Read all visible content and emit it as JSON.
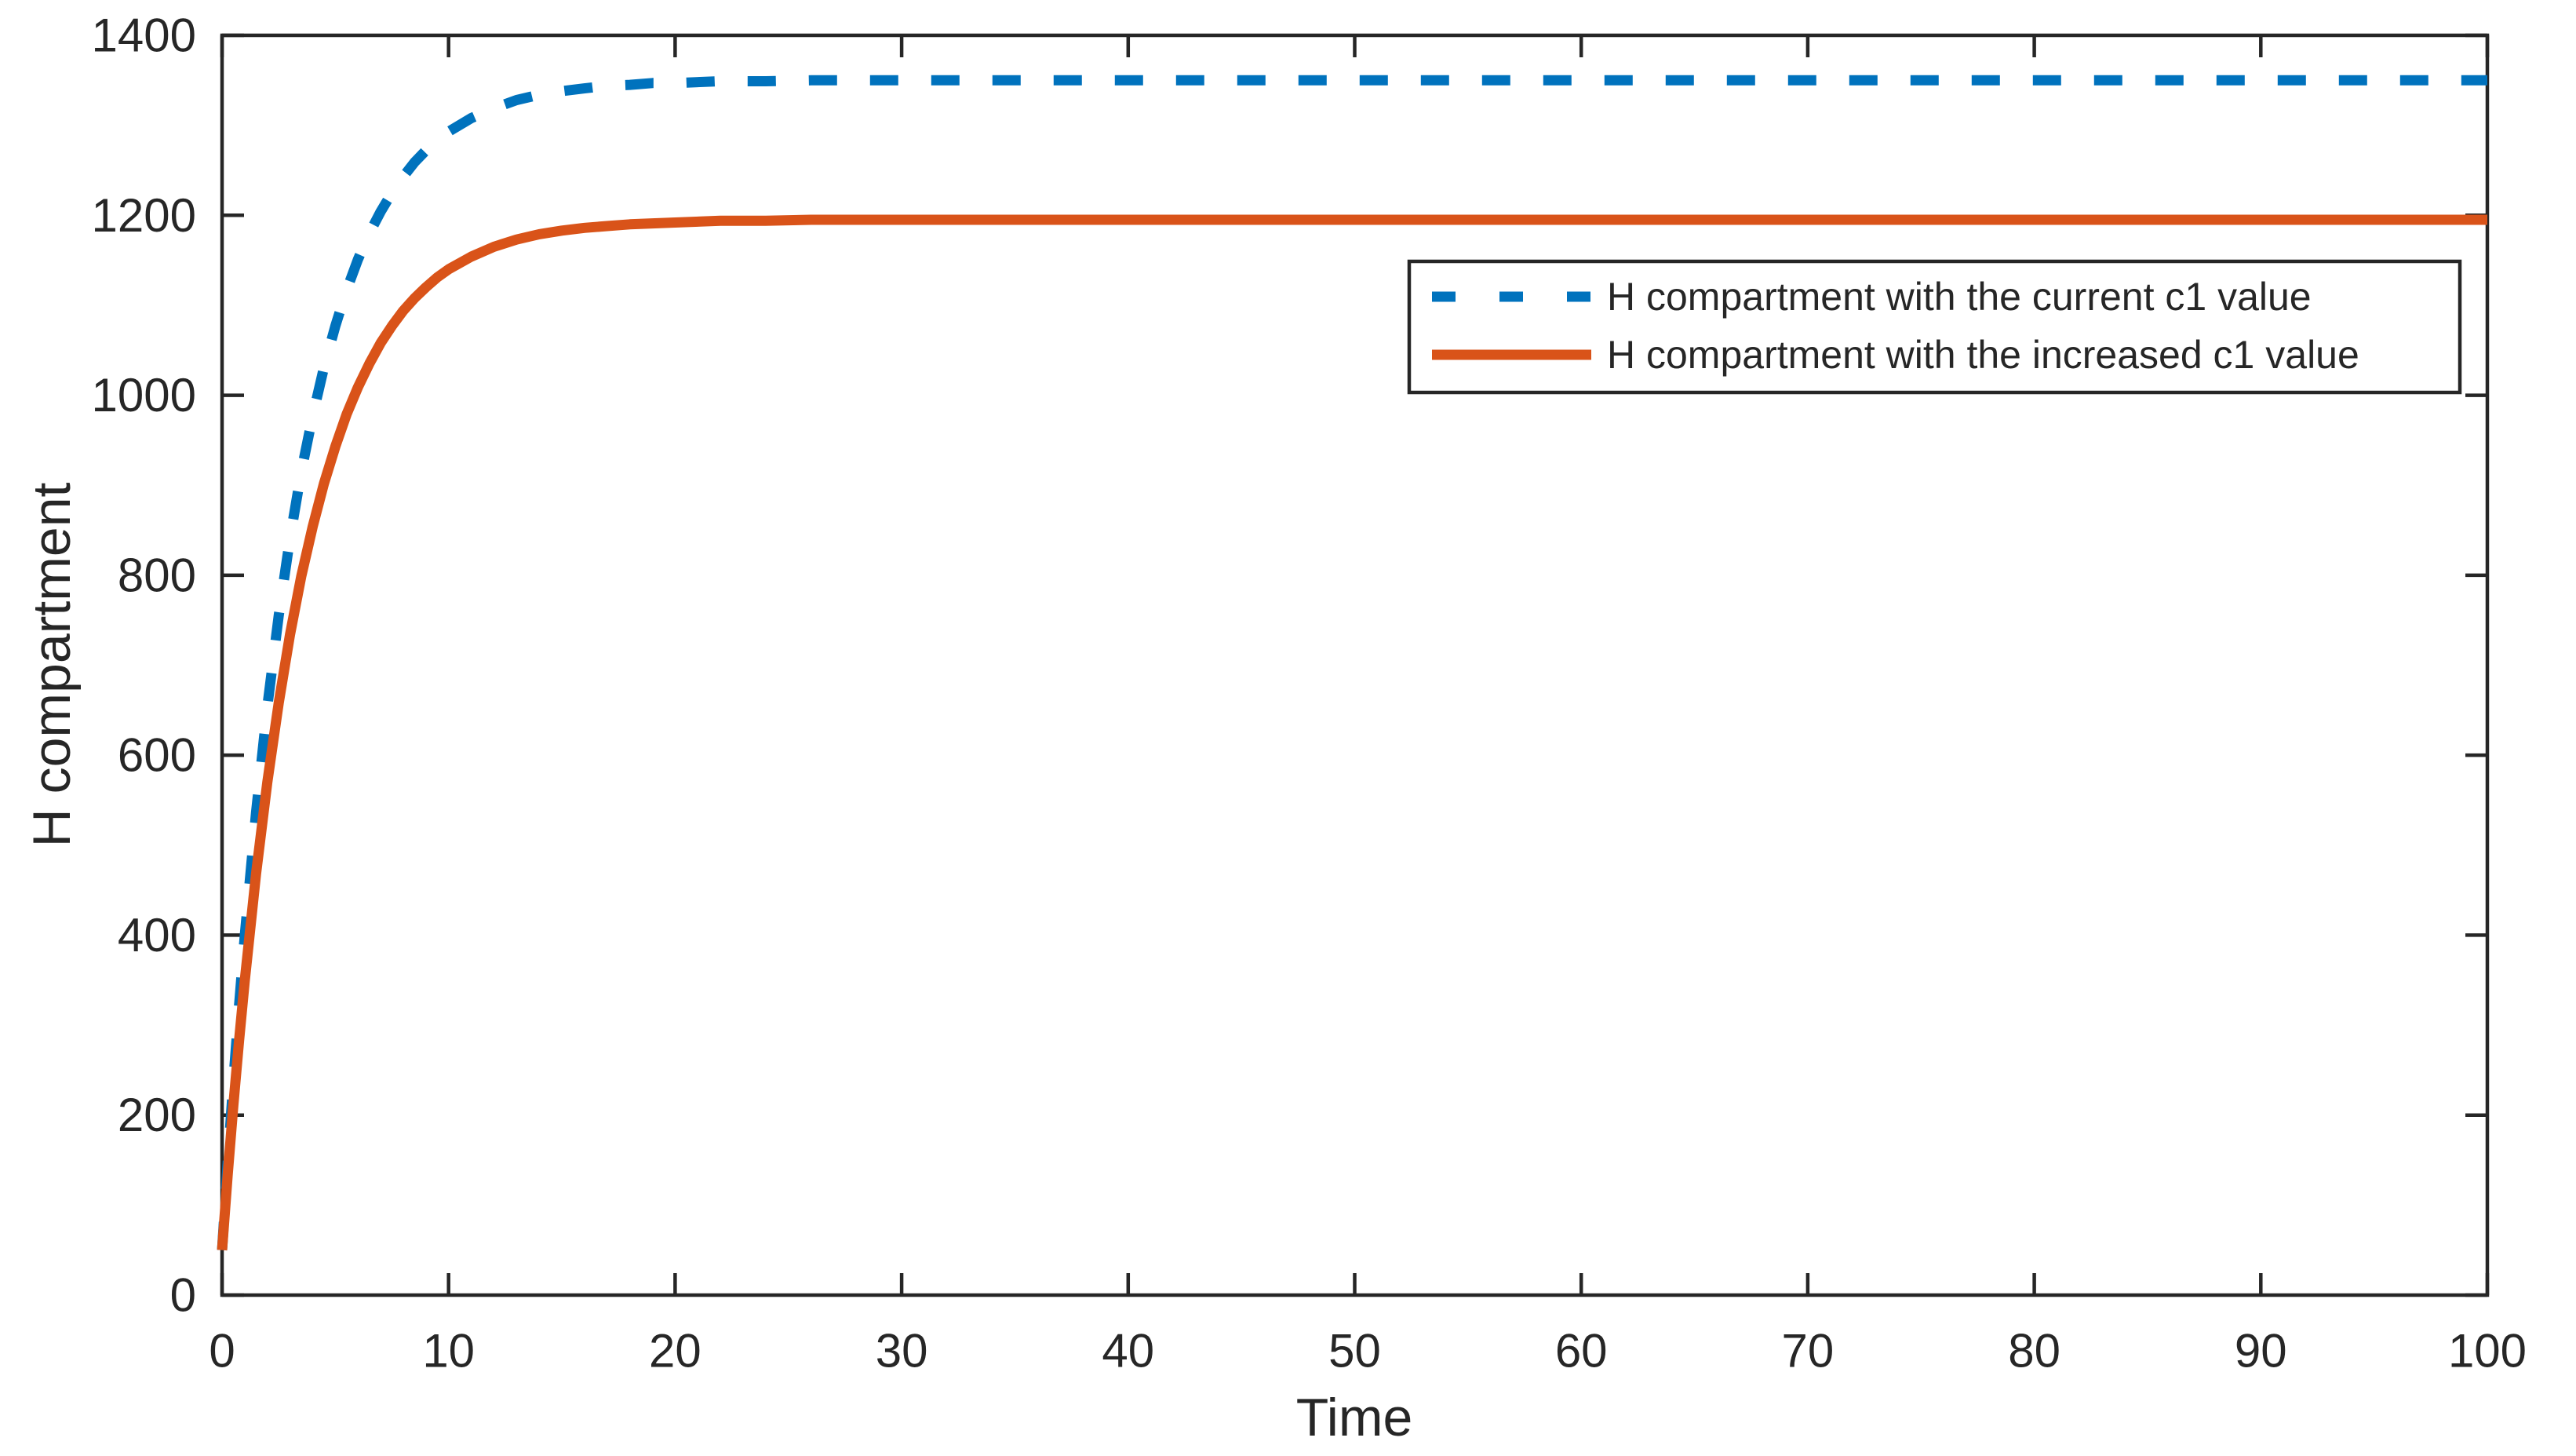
{
  "chart_data": {
    "type": "line",
    "title": "",
    "xlabel": "Time",
    "ylabel": "H compartment",
    "xlim": [
      0,
      100
    ],
    "ylim": [
      0,
      1400
    ],
    "xticks": [
      0,
      10,
      20,
      30,
      40,
      50,
      60,
      70,
      80,
      90,
      100
    ],
    "yticks": [
      0,
      200,
      400,
      600,
      800,
      1000,
      1200,
      1400
    ],
    "grid": false,
    "box": true,
    "background": "#ffffff",
    "axis_color": "#262626",
    "legend": {
      "position": "northeast",
      "border_color": "#262626",
      "fill": "#ffffff"
    },
    "series": [
      {
        "name": "H compartment with the current c1 value",
        "color": "#0072BD",
        "line_style": "dashed",
        "line_width": 13,
        "initial_value": 50,
        "steady_state": 1350,
        "points": [
          [
            0,
            50
          ],
          [
            0.25,
            148
          ],
          [
            0.5,
            238
          ],
          [
            0.75,
            322
          ],
          [
            1,
            399
          ],
          [
            1.5,
            536
          ],
          [
            2,
            654
          ],
          [
            2.5,
            755
          ],
          [
            3,
            841
          ],
          [
            3.5,
            915
          ],
          [
            4,
            977
          ],
          [
            4.5,
            1031
          ],
          [
            5,
            1077
          ],
          [
            5.5,
            1117
          ],
          [
            6,
            1151
          ],
          [
            6.5,
            1180
          ],
          [
            7,
            1204
          ],
          [
            7.5,
            1225
          ],
          [
            8,
            1243
          ],
          [
            8.5,
            1259
          ],
          [
            9,
            1272
          ],
          [
            9.5,
            1283
          ],
          [
            10,
            1293
          ],
          [
            11,
            1308
          ],
          [
            12,
            1319
          ],
          [
            13,
            1328
          ],
          [
            14,
            1334
          ],
          [
            15,
            1338
          ],
          [
            16,
            1341
          ],
          [
            17,
            1344
          ],
          [
            18,
            1345
          ],
          [
            19,
            1347
          ],
          [
            20,
            1347
          ],
          [
            22,
            1349
          ],
          [
            24,
            1349
          ],
          [
            26,
            1350
          ],
          [
            28,
            1350
          ],
          [
            30,
            1350
          ],
          [
            40,
            1350
          ],
          [
            50,
            1350
          ],
          [
            60,
            1350
          ],
          [
            70,
            1350
          ],
          [
            80,
            1350
          ],
          [
            90,
            1350
          ],
          [
            100,
            1350
          ]
        ]
      },
      {
        "name": "H compartment with the increased c1 value",
        "color": "#D95319",
        "line_style": "solid",
        "line_width": 13,
        "initial_value": 50,
        "steady_state": 1195,
        "points": [
          [
            0,
            50
          ],
          [
            0.25,
            134
          ],
          [
            0.5,
            211
          ],
          [
            0.75,
            283
          ],
          [
            1,
            349
          ],
          [
            1.5,
            468
          ],
          [
            2,
            570
          ],
          [
            2.5,
            658
          ],
          [
            3,
            734
          ],
          [
            3.5,
            799
          ],
          [
            4,
            854
          ],
          [
            4.5,
            902
          ],
          [
            5,
            943
          ],
          [
            5.5,
            979
          ],
          [
            6,
            1009
          ],
          [
            6.5,
            1035
          ],
          [
            7,
            1058
          ],
          [
            7.5,
            1077
          ],
          [
            8,
            1094
          ],
          [
            8.5,
            1108
          ],
          [
            9,
            1120
          ],
          [
            9.5,
            1131
          ],
          [
            10,
            1140
          ],
          [
            11,
            1154
          ],
          [
            12,
            1165
          ],
          [
            13,
            1173
          ],
          [
            14,
            1179
          ],
          [
            15,
            1183
          ],
          [
            16,
            1186
          ],
          [
            17,
            1188
          ],
          [
            18,
            1190
          ],
          [
            19,
            1191
          ],
          [
            20,
            1192
          ],
          [
            22,
            1194
          ],
          [
            24,
            1194
          ],
          [
            26,
            1195
          ],
          [
            28,
            1195
          ],
          [
            30,
            1195
          ],
          [
            40,
            1195
          ],
          [
            50,
            1195
          ],
          [
            60,
            1195
          ],
          [
            70,
            1195
          ],
          [
            80,
            1195
          ],
          [
            90,
            1195
          ],
          [
            100,
            1195
          ]
        ]
      }
    ]
  }
}
